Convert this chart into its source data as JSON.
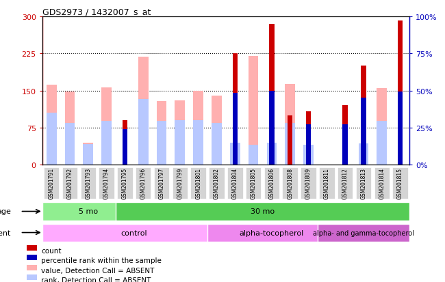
{
  "title": "GDS2973 / 1432007_s_at",
  "samples": [
    "GSM201791",
    "GSM201792",
    "GSM201793",
    "GSM201794",
    "GSM201795",
    "GSM201796",
    "GSM201797",
    "GSM201799",
    "GSM201801",
    "GSM201802",
    "GSM201804",
    "GSM201805",
    "GSM201806",
    "GSM201808",
    "GSM201809",
    "GSM201811",
    "GSM201812",
    "GSM201813",
    "GSM201814",
    "GSM201815"
  ],
  "value_absent": [
    162,
    148,
    45,
    156,
    0,
    218,
    128,
    130,
    150,
    140,
    0,
    220,
    0,
    163,
    0,
    0,
    0,
    0,
    155,
    0
  ],
  "rank_absent": [
    105,
    85,
    42,
    88,
    0,
    133,
    88,
    90,
    90,
    85,
    45,
    40,
    45,
    85,
    40,
    0,
    0,
    43,
    88,
    0
  ],
  "count": [
    0,
    0,
    0,
    0,
    90,
    0,
    0,
    0,
    0,
    0,
    225,
    0,
    285,
    100,
    108,
    0,
    120,
    200,
    0,
    292
  ],
  "percentile_left_scale": [
    0,
    0,
    0,
    0,
    72,
    0,
    0,
    0,
    0,
    0,
    145,
    0,
    150,
    0,
    82,
    0,
    82,
    135,
    0,
    148
  ],
  "count_color": "#cc0000",
  "percentile_color": "#0000bb",
  "value_absent_color": "#ffb0b0",
  "rank_absent_color": "#b8c8ff",
  "ylim_left": [
    0,
    300
  ],
  "ylim_right": [
    0,
    100
  ],
  "yticks_left": [
    0,
    75,
    150,
    225,
    300
  ],
  "yticks_right": [
    0,
    25,
    50,
    75,
    100
  ],
  "gridlines": [
    75,
    150,
    225
  ],
  "age_groups": [
    {
      "label": "5 mo",
      "start": 0,
      "end": 4,
      "color": "#90ee90"
    },
    {
      "label": "30 mo",
      "start": 4,
      "end": 19,
      "color": "#55cc55"
    }
  ],
  "agent_groups": [
    {
      "label": "control",
      "start": 0,
      "end": 9,
      "color": "#ffaaff"
    },
    {
      "label": "alpha-tocopherol",
      "start": 9,
      "end": 15,
      "color": "#ee88ee"
    },
    {
      "label": "alpha- and gamma-tocopherol",
      "start": 15,
      "end": 19,
      "color": "#cc66cc"
    }
  ],
  "legend_items": [
    {
      "label": "count",
      "color": "#cc0000"
    },
    {
      "label": "percentile rank within the sample",
      "color": "#0000bb"
    },
    {
      "label": "value, Detection Call = ABSENT",
      "color": "#ffb0b0"
    },
    {
      "label": "rank, Detection Call = ABSENT",
      "color": "#b8c8ff"
    }
  ]
}
